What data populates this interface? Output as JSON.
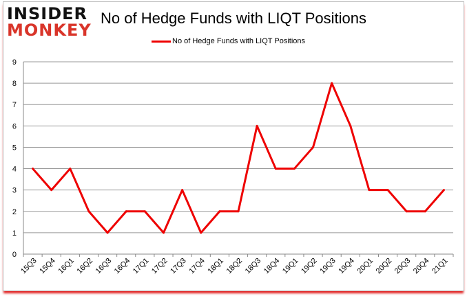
{
  "logo": {
    "line1": "INSIDER",
    "line2": "MONKEY"
  },
  "chart_data": {
    "type": "line",
    "title": "No of Hedge Funds with LIQT Positions",
    "xlabel": "",
    "ylabel": "",
    "categories": [
      "15Q3",
      "15Q4",
      "16Q1",
      "16Q2",
      "16Q3",
      "16Q4",
      "17Q1",
      "17Q2",
      "17Q3",
      "17Q4",
      "18Q1",
      "18Q2",
      "18Q3",
      "18Q4",
      "19Q1",
      "19Q2",
      "19Q3",
      "19Q4",
      "20Q1",
      "20Q2",
      "20Q3",
      "20Q4",
      "21Q1"
    ],
    "series": [
      {
        "name": "No of Hedge Funds with LIQT Positions",
        "values": [
          4,
          3,
          4,
          2,
          1,
          2,
          2,
          1,
          3,
          1,
          2,
          2,
          6,
          4,
          4,
          5,
          8,
          6,
          3,
          3,
          2,
          2,
          3
        ],
        "color": "#ee0000"
      }
    ],
    "ylim": [
      0,
      9
    ],
    "yticks": [
      0,
      1,
      2,
      3,
      4,
      5,
      6,
      7,
      8,
      9
    ],
    "grid": true,
    "legend": "top"
  }
}
